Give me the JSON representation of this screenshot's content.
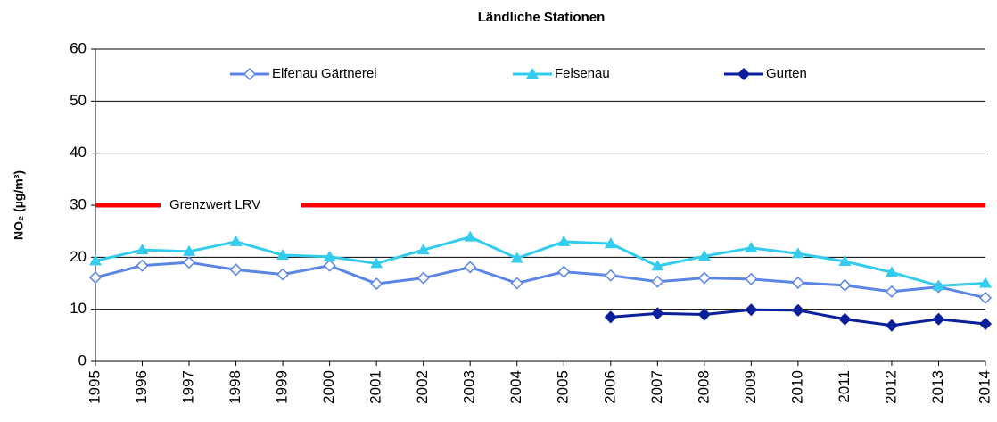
{
  "chart_data": {
    "type": "line",
    "title": "Ländliche Stationen",
    "y_label": "NO₂ (µg/m³)",
    "categories": [
      "1995",
      "1996",
      "1997",
      "1998",
      "1999",
      "2000",
      "2001",
      "2002",
      "2003",
      "2004",
      "2005",
      "2006",
      "2007",
      "2008",
      "2009",
      "2010",
      "2011",
      "2012",
      "2013",
      "2014"
    ],
    "series": [
      {
        "name": "Elfenau Gärtnerei",
        "color": "#5b86e5",
        "marker": "diamond-open",
        "values": [
          16.1,
          18.4,
          19.0,
          17.6,
          16.7,
          18.4,
          14.9,
          16.0,
          18.1,
          15.0,
          17.2,
          16.5,
          15.3,
          16.0,
          15.8,
          15.1,
          14.6,
          13.4,
          14.3,
          12.2
        ]
      },
      {
        "name": "Felsenau",
        "color": "#33ccee",
        "marker": "triangle",
        "values": [
          19.3,
          21.4,
          21.1,
          23.0,
          20.4,
          20.1,
          18.8,
          21.4,
          23.9,
          19.8,
          23.0,
          22.6,
          18.3,
          20.2,
          21.8,
          20.7,
          19.2,
          17.1,
          14.5,
          15.0
        ]
      },
      {
        "name": "Gurten",
        "color": "#0a1f9c",
        "marker": "diamond",
        "values": [
          null,
          null,
          null,
          null,
          null,
          null,
          null,
          null,
          null,
          null,
          null,
          8.5,
          9.2,
          9.0,
          9.9,
          9.8,
          8.1,
          6.9,
          8.1,
          7.2
        ]
      }
    ],
    "threshold": {
      "value": 30,
      "label": "Grenzwert LRV",
      "color": "#ff0000"
    },
    "ylim": [
      0,
      60
    ],
    "yticks": [
      0,
      10,
      20,
      30,
      40,
      50,
      60
    ],
    "grid": true,
    "legend": "top"
  }
}
